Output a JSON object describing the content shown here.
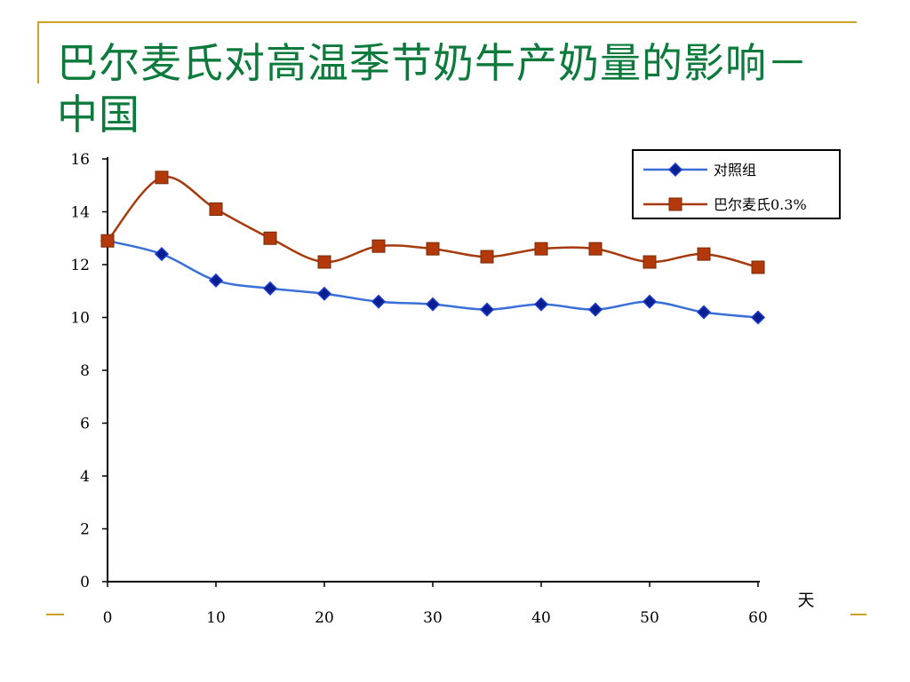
{
  "slide": {
    "title": "巴尔麦氏对高温季节奶牛产奶量的影响－中国"
  },
  "colors": {
    "accent": "#c9a227",
    "title": "#0b7a3b",
    "series_control": "#3a6fd8",
    "series_control_marker": "#0a1f8f",
    "series_treatment": "#a53a0c",
    "series_treatment_marker": "#b3390b"
  },
  "chart_data": {
    "type": "line",
    "title": "",
    "xlabel": "天",
    "ylabel": "",
    "xlim": [
      0,
      60
    ],
    "ylim": [
      0,
      16
    ],
    "x_ticks": [
      0,
      10,
      20,
      30,
      40,
      50,
      60
    ],
    "y_ticks": [
      0,
      2,
      4,
      6,
      8,
      10,
      12,
      14,
      16
    ],
    "grid": false,
    "legend_position": "top-right",
    "x": [
      0,
      5,
      10,
      15,
      20,
      25,
      30,
      35,
      40,
      45,
      50,
      55,
      60
    ],
    "series": [
      {
        "name": "对照组",
        "marker": "diamond",
        "values": [
          12.9,
          12.4,
          11.4,
          11.1,
          10.9,
          10.6,
          10.5,
          10.3,
          10.5,
          10.3,
          10.6,
          10.2,
          10.0
        ]
      },
      {
        "name": "巴尔麦氏0.3%",
        "marker": "square",
        "values": [
          12.9,
          15.3,
          14.1,
          13.0,
          12.1,
          12.7,
          12.6,
          12.3,
          12.6,
          12.6,
          12.1,
          12.4,
          11.9
        ]
      }
    ]
  }
}
